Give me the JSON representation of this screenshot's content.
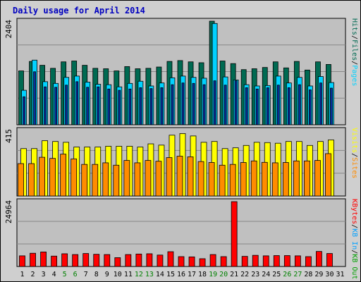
{
  "title": "Daily usage for April 2014",
  "colors": {
    "frame_bg": "#cfcfcf",
    "plot_bg": "#c0c0c0",
    "hits": "#00d2ff",
    "files": "#006a52",
    "pages": "#0a2d9a",
    "visits": "#ffff00",
    "sites": "#ff8c00",
    "kbytes": "#ff0000",
    "weekend_label": "#008000",
    "weekday_label": "#000000",
    "title": "#0000c0"
  },
  "chart_data": [
    {
      "type": "bar",
      "name": "hits-files-pages",
      "ymax_label": "2404",
      "ymax": 2404,
      "side_labels": [
        {
          "text": "Hits",
          "color": "#006a52"
        },
        {
          "text": "/",
          "color": "#000000"
        },
        {
          "text": "Files",
          "color": "#006a52"
        },
        {
          "text": "/",
          "color": "#000000"
        },
        {
          "text": "Pages",
          "color": "#00d2ff"
        }
      ],
      "series": [
        {
          "name": "Hits",
          "values": [
            1250,
            1470,
            1380,
            1310,
            1460,
            1480,
            1380,
            1310,
            1300,
            1250,
            1350,
            1300,
            1310,
            1340,
            1470,
            1490,
            1460,
            1440,
            2404,
            1480,
            1420,
            1280,
            1300,
            1330,
            1460,
            1320,
            1470,
            1270,
            1460,
            1400,
            0
          ]
        },
        {
          "name": "Files",
          "values": [
            800,
            1500,
            1000,
            960,
            1100,
            1130,
            990,
            940,
            930,
            880,
            960,
            1010,
            900,
            970,
            1090,
            1130,
            1100,
            1080,
            2350,
            1110,
            1040,
            930,
            900,
            910,
            1130,
            970,
            1100,
            900,
            1120,
            980,
            0
          ]
        },
        {
          "name": "Pages",
          "values": [
            650,
            1230,
            880,
            870,
            920,
            1000,
            870,
            880,
            830,
            800,
            830,
            860,
            840,
            860,
            930,
            970,
            960,
            930,
            1020,
            920,
            1020,
            860,
            830,
            860,
            920,
            860,
            930,
            810,
            970,
            850,
            0
          ]
        }
      ]
    },
    {
      "type": "bar",
      "name": "visits-sites",
      "ymax_label": "415",
      "ymax": 415,
      "side_labels": [
        {
          "text": "Visits",
          "color": "#ffff00"
        },
        {
          "text": "/",
          "color": "#000000"
        },
        {
          "text": "Sites",
          "color": "#ff8c00"
        }
      ],
      "series": [
        {
          "name": "Visits",
          "values": [
            300,
            300,
            350,
            345,
            340,
            310,
            310,
            310,
            315,
            315,
            315,
            310,
            330,
            322,
            385,
            395,
            380,
            340,
            345,
            300,
            305,
            320,
            340,
            338,
            334,
            345,
            345,
            320,
            345,
            355,
            0
          ]
        },
        {
          "name": "Sites",
          "values": [
            205,
            205,
            245,
            238,
            265,
            235,
            200,
            200,
            210,
            195,
            225,
            210,
            225,
            220,
            243,
            252,
            248,
            218,
            212,
            195,
            200,
            212,
            222,
            213,
            210,
            212,
            222,
            222,
            225,
            268,
            0
          ]
        }
      ]
    },
    {
      "type": "bar",
      "name": "kbytes",
      "ymax_label": "24964",
      "ymax": 24964,
      "side_labels": [
        {
          "text": "KBytes",
          "color": "#ff0000"
        },
        {
          "text": "/",
          "color": "#000000"
        },
        {
          "text": "KB In",
          "color": "#00a0ff"
        },
        {
          "text": "/",
          "color": "#000000"
        },
        {
          "text": "KB Out",
          "color": "#00a000"
        }
      ],
      "series": [
        {
          "name": "KBytes",
          "values": [
            4100,
            5100,
            5600,
            4000,
            4900,
            4600,
            5000,
            4700,
            4600,
            3400,
            4600,
            4800,
            4900,
            4400,
            5700,
            3800,
            3700,
            3000,
            4600,
            3800,
            24964,
            3900,
            4300,
            4100,
            4200,
            4200,
            4100,
            3800,
            5800,
            5000,
            0
          ]
        }
      ]
    }
  ],
  "x_labels": [
    "1",
    "2",
    "3",
    "4",
    "5",
    "6",
    "7",
    "8",
    "9",
    "10",
    "11",
    "12",
    "13",
    "14",
    "15",
    "16",
    "17",
    "18",
    "19",
    "20",
    "21",
    "22",
    "23",
    "24",
    "25",
    "26",
    "27",
    "28",
    "29",
    "30",
    "31"
  ],
  "weekend_days": [
    "5",
    "6",
    "12",
    "13",
    "19",
    "20",
    "26",
    "27"
  ]
}
